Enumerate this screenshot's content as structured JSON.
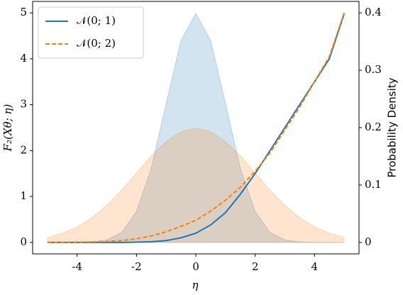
{
  "chart_data": {
    "type": "line",
    "xlabel": "η",
    "ylabel": "F₂(Xθ; η)",
    "y2label": "Probability Density",
    "x": [
      -5,
      -4.5,
      -4,
      -3.5,
      -3,
      -2.5,
      -2,
      -1.5,
      -1,
      -0.5,
      0,
      0.5,
      1,
      1.5,
      2,
      2.5,
      3,
      3.5,
      4,
      4.5,
      5
    ],
    "series": [
      {
        "name": "𝒩(0; 1)",
        "color": "#1f77b4",
        "style": "solid",
        "axis": "y",
        "values": [
          0,
          0,
          0,
          0,
          0,
          0,
          0.005,
          0.015,
          0.04,
          0.1,
          0.2,
          0.38,
          0.65,
          1.05,
          1.5,
          2.0,
          2.5,
          3.0,
          3.5,
          4.0,
          4.98
        ]
      },
      {
        "name": "𝒩(0; 2)",
        "color": "#ff7f0e",
        "style": "dashed",
        "axis": "y",
        "values": [
          0,
          0,
          0.005,
          0.01,
          0.02,
          0.04,
          0.08,
          0.14,
          0.23,
          0.35,
          0.48,
          0.68,
          0.92,
          1.2,
          1.55,
          1.95,
          2.45,
          2.95,
          3.5,
          4.05,
          5.0
        ]
      }
    ],
    "areas": [
      {
        "color": "#1f77b4",
        "axis": "y2",
        "values": [
          1.5e-06,
          1.6e-05,
          0.000134,
          0.000873,
          0.00443,
          0.0175,
          0.054,
          0.1295,
          0.242,
          0.352,
          0.399,
          0.352,
          0.242,
          0.1295,
          0.054,
          0.0175,
          0.00443,
          0.000873,
          0.000134,
          1.6e-05,
          1.5e-06
        ]
      },
      {
        "color": "#ff7f0e",
        "axis": "y2",
        "values": [
          0.0088,
          0.016,
          0.027,
          0.043,
          0.065,
          0.091,
          0.121,
          0.151,
          0.176,
          0.193,
          0.199,
          0.193,
          0.176,
          0.151,
          0.121,
          0.091,
          0.065,
          0.043,
          0.027,
          0.016,
          0.0088
        ]
      }
    ],
    "xlim": [
      -5.5,
      5.5
    ],
    "xticks": [
      -4,
      -2,
      0,
      2,
      4
    ],
    "ylim": [
      -0.25,
      5.25
    ],
    "yticks": [
      0,
      1,
      2,
      3,
      4,
      5
    ],
    "y2lim": [
      -0.02,
      0.42
    ],
    "y2ticks": [
      0.0,
      {
        "value": 0.1,
        "label": "0.1"
      },
      {
        "value": 0.2,
        "label": "0.2"
      },
      {
        "value": 0.3,
        "label": "0.3"
      },
      {
        "value": 0.4,
        "label": "0.4"
      }
    ],
    "legend": "upper left"
  }
}
